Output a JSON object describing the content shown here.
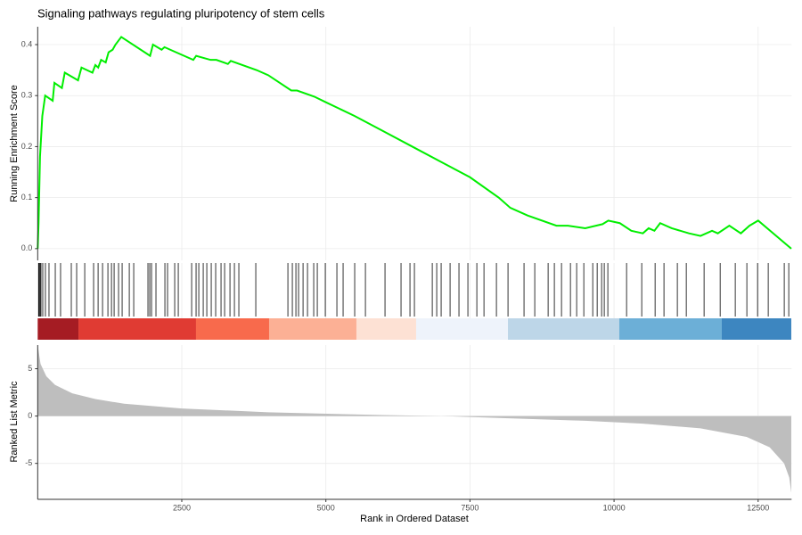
{
  "chart_data": [
    {
      "type": "line",
      "title": "Signaling pathways regulating pluripotency of stem cells",
      "ylabel": "Running Enrichment Score",
      "x": [
        0,
        15,
        40,
        80,
        130,
        260,
        290,
        420,
        470,
        700,
        760,
        950,
        1000,
        1050,
        1100,
        1180,
        1230,
        1300,
        1350,
        1450,
        1950,
        2000,
        2150,
        2200,
        2400,
        2700,
        2750,
        3000,
        3100,
        3300,
        3350,
        3800,
        4000,
        4400,
        4500,
        4800,
        5000,
        5500,
        6000,
        6500,
        7000,
        7500,
        8000,
        8200,
        8500,
        9000,
        9200,
        9500,
        9800,
        9900,
        10100,
        10300,
        10500,
        10600,
        10700,
        10800,
        11000,
        11300,
        11500,
        11700,
        11800,
        12000,
        12200,
        12350,
        12500,
        13075
      ],
      "values": [
        0,
        0.05,
        0.18,
        0.26,
        0.3,
        0.29,
        0.325,
        0.315,
        0.345,
        0.33,
        0.355,
        0.345,
        0.36,
        0.355,
        0.37,
        0.365,
        0.385,
        0.39,
        0.4,
        0.415,
        0.378,
        0.4,
        0.39,
        0.395,
        0.385,
        0.37,
        0.378,
        0.37,
        0.37,
        0.362,
        0.368,
        0.35,
        0.34,
        0.31,
        0.31,
        0.298,
        0.287,
        0.26,
        0.23,
        0.2,
        0.17,
        0.14,
        0.1,
        0.08,
        0.065,
        0.045,
        0.045,
        0.04,
        0.048,
        0.055,
        0.05,
        0.035,
        0.03,
        0.04,
        0.035,
        0.05,
        0.04,
        0.03,
        0.025,
        0.035,
        0.03,
        0.045,
        0.03,
        0.045,
        0.055,
        0
      ],
      "color": "#00ee00",
      "xlim": [
        0,
        13080
      ],
      "ylim": [
        -0.023,
        0.435
      ],
      "xticks": [
        2500,
        5000,
        7500,
        10000,
        12500
      ],
      "yticks": [
        {
          "value": 0,
          "label": "0.0"
        },
        0.1,
        0.2,
        0.3,
        0.4
      ],
      "grid": true
    },
    {
      "type": "rug",
      "x": [
        15,
        26,
        42,
        57,
        88,
        134,
        196,
        305,
        397,
        583,
        676,
        816,
        970,
        1048,
        1125,
        1218,
        1280,
        1326,
        1403,
        1465,
        1589,
        1666,
        1913,
        1944,
        1975,
        2052,
        2207,
        2253,
        2377,
        2439,
        2671,
        2748,
        2795,
        2872,
        2934,
        3011,
        3088,
        3181,
        3243,
        3336,
        3413,
        3490,
        3784,
        4341,
        4418,
        4480,
        4526,
        4604,
        4681,
        4789,
        4851,
        4990,
        5191,
        5299,
        5500,
        5686,
        6026,
        6304,
        6459,
        6536,
        6846,
        6923,
        7000,
        7155,
        7309,
        7464,
        7619,
        7743,
        7959,
        8160,
        8438,
        8624,
        8856,
        8964,
        9088,
        9243,
        9351,
        9475,
        9630,
        9707,
        9784,
        9830,
        9892,
        10217,
        10480,
        10712,
        10866,
        11098,
        11253,
        11562,
        11841,
        12103,
        12304,
        12490,
        12675,
        12953,
        13031
      ],
      "color": "#000000",
      "xlim": [
        0,
        13080
      ],
      "xticks": [
        2500,
        5000,
        7500,
        10000,
        12500
      ],
      "grid": true,
      "bands": [
        {
          "start": 0,
          "end": 707,
          "color": "#a51c23"
        },
        {
          "start": 707,
          "end": 2747,
          "color": "#e03b33"
        },
        {
          "start": 2747,
          "end": 4015,
          "color": "#f86a4c"
        },
        {
          "start": 4015,
          "end": 5530,
          "color": "#fcb095"
        },
        {
          "start": 5530,
          "end": 6566,
          "color": "#fde1d4"
        },
        {
          "start": 6566,
          "end": 8159,
          "color": "#eef3fb"
        },
        {
          "start": 8159,
          "end": 10091,
          "color": "#bdd6e8"
        },
        {
          "start": 10091,
          "end": 11869,
          "color": "#6cafd7"
        },
        {
          "start": 11869,
          "end": 13075,
          "color": "#3d86c0"
        }
      ]
    },
    {
      "type": "area",
      "xlabel": "Rank in Ordered Dataset",
      "ylabel": "Ranked List Metric",
      "x": [
        0,
        50,
        150,
        300,
        600,
        1000,
        1500,
        2500,
        4000,
        6000,
        7000,
        8000,
        9500,
        10500,
        11500,
        12300,
        12700,
        12950,
        13040,
        13075
      ],
      "values": [
        7.5,
        5.5,
        4.2,
        3.3,
        2.4,
        1.8,
        1.3,
        0.8,
        0.4,
        0.1,
        0,
        -0.2,
        -0.5,
        -0.8,
        -1.3,
        -2.2,
        -3.3,
        -5,
        -6.5,
        -8.1
      ],
      "color": "#bebebe",
      "xlim": [
        0,
        13080
      ],
      "ylim": [
        -8.8,
        7.5
      ],
      "xticks": [
        2500,
        5000,
        7500,
        10000,
        12500
      ],
      "yticks": [
        -5,
        0,
        5
      ],
      "grid": true
    }
  ]
}
